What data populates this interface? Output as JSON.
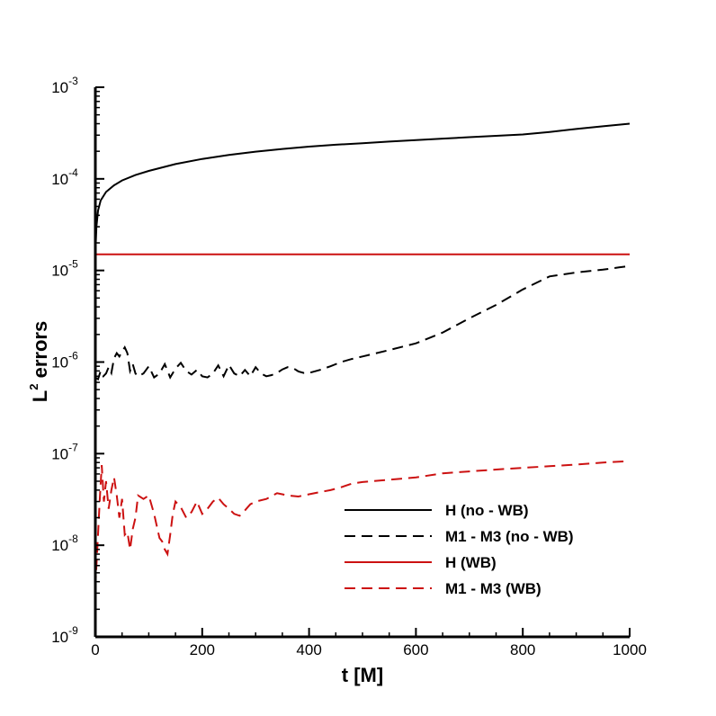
{
  "chart_data": {
    "type": "line",
    "title": "",
    "xlabel": "t [M]",
    "ylabel_main": "L",
    "ylabel_sup": "2",
    "ylabel_rest": " errors",
    "yscale": "log",
    "xlim": [
      0,
      1000
    ],
    "ylim": [
      1e-09,
      0.001
    ],
    "grid": false,
    "legend_position": "lower-right",
    "x_ticks": [
      0,
      200,
      400,
      600,
      800,
      1000
    ],
    "x_tick_labels": [
      "0",
      "200",
      "400",
      "600",
      "800",
      "1000"
    ],
    "y_ticks": [
      1e-09,
      1e-08,
      1e-07,
      1e-06,
      1e-05,
      0.0001,
      0.001
    ],
    "y_tick_bases": [
      "10",
      "10",
      "10",
      "10",
      "10",
      "10",
      "10"
    ],
    "y_tick_exps": [
      "-9",
      "-8",
      "-7",
      "-6",
      "-5",
      "-4",
      "-3"
    ],
    "series": [
      {
        "name": "H  (no - WB)",
        "color": "#000000",
        "dash": "solid",
        "x": [
          0,
          2,
          5,
          10,
          20,
          35,
          50,
          75,
          100,
          150,
          200,
          250,
          300,
          350,
          400,
          450,
          500,
          550,
          600,
          650,
          700,
          750,
          800,
          850,
          900,
          950,
          1000
        ],
        "y": [
          1.5e-05,
          3e-05,
          4.5e-05,
          5.8e-05,
          7.2e-05,
          8.5e-05,
          9.6e-05,
          0.00011,
          0.000122,
          0.000145,
          0.000165,
          0.000182,
          0.000198,
          0.000212,
          0.000225,
          0.000236,
          0.000245,
          0.000255,
          0.000265,
          0.000275,
          0.000285,
          0.000295,
          0.000305,
          0.000325,
          0.00035,
          0.000375,
          0.0004
        ]
      },
      {
        "name": "M1 - M3 (no - WB)",
        "color": "#000000",
        "dash": "dashed",
        "x": [
          0,
          5,
          10,
          15,
          20,
          25,
          30,
          35,
          40,
          45,
          50,
          55,
          60,
          65,
          70,
          75,
          80,
          90,
          100,
          110,
          120,
          130,
          140,
          150,
          160,
          170,
          180,
          190,
          200,
          210,
          220,
          230,
          240,
          250,
          260,
          270,
          280,
          290,
          300,
          310,
          320,
          330,
          340,
          350,
          360,
          370,
          380,
          390,
          400,
          420,
          440,
          460,
          480,
          500,
          550,
          600,
          650,
          700,
          750,
          800,
          850,
          900,
          950,
          980,
          1000
        ],
        "y": [
          6.8e-07,
          6.5e-07,
          8e-07,
          7e-07,
          7.5e-07,
          8.8e-07,
          7.6e-07,
          1.1e-06,
          1.25e-06,
          1.15e-06,
          1.3e-06,
          1.45e-06,
          1.25e-06,
          8e-07,
          9.5e-07,
          7.5e-07,
          7e-07,
          7.5e-07,
          9e-07,
          6.8e-07,
          7.5e-07,
          9.5e-07,
          6.8e-07,
          8.5e-07,
          9.8e-07,
          8e-07,
          7.3e-07,
          8.2e-07,
          7e-07,
          6.8e-07,
          7.5e-07,
          9.2e-07,
          7e-07,
          9.3e-07,
          7.5e-07,
          7e-07,
          8.2e-07,
          7e-07,
          8.8e-07,
          7.5e-07,
          7e-07,
          7.2e-07,
          7.6e-07,
          8.3e-07,
          8.8e-07,
          8.6e-07,
          7.9e-07,
          7.6e-07,
          7.6e-07,
          8.2e-07,
          9e-07,
          1e-06,
          1.08e-06,
          1.15e-06,
          1.35e-06,
          1.6e-06,
          2.1e-06,
          3e-06,
          4.2e-06,
          6.2e-06,
          8.6e-06,
          9.5e-06,
          1.02e-05,
          1.08e-05,
          1.12e-05
        ]
      },
      {
        "name": "H (WB)",
        "color": "#cc1111",
        "dash": "solid",
        "x": [
          0,
          1000
        ],
        "y": [
          1.5e-05,
          1.5e-05
        ]
      },
      {
        "name": "M1 - M3 (WB)",
        "color": "#cc1111",
        "dash": "dashed",
        "x": [
          0,
          4,
          8,
          12,
          16,
          20,
          25,
          30,
          35,
          40,
          45,
          50,
          55,
          60,
          65,
          70,
          75,
          80,
          90,
          100,
          110,
          120,
          125,
          130,
          135,
          140,
          145,
          150,
          160,
          170,
          180,
          190,
          200,
          210,
          220,
          230,
          240,
          250,
          260,
          270,
          280,
          290,
          300,
          320,
          340,
          360,
          380,
          400,
          420,
          440,
          460,
          480,
          500,
          550,
          600,
          650,
          700,
          750,
          800,
          850,
          900,
          950,
          1000
        ],
        "y": [
          3.5e-09,
          1e-08,
          3e-08,
          7.5e-08,
          3e-08,
          5e-08,
          2.5e-08,
          4e-08,
          5.5e-08,
          3.5e-08,
          2e-08,
          3.2e-08,
          1.3e-08,
          1.4e-08,
          9e-09,
          1.5e-08,
          2e-08,
          3.5e-08,
          3.2e-08,
          3.5e-08,
          2.2e-08,
          1.2e-08,
          1.1e-08,
          9e-09,
          8e-09,
          1.3e-08,
          2.2e-08,
          3e-08,
          2.6e-08,
          2e-08,
          2.3e-08,
          3e-08,
          2.2e-08,
          2.5e-08,
          3e-08,
          3.3e-08,
          2.8e-08,
          2.5e-08,
          2.2e-08,
          2.1e-08,
          2.4e-08,
          2.8e-08,
          3e-08,
          3.2e-08,
          3.7e-08,
          3.5e-08,
          3.4e-08,
          3.6e-08,
          3.8e-08,
          4e-08,
          4.3e-08,
          4.7e-08,
          4.9e-08,
          5.2e-08,
          5.5e-08,
          6.1e-08,
          6.4e-08,
          6.7e-08,
          7e-08,
          7.3e-08,
          7.6e-08,
          8e-08,
          8.3e-08
        ]
      }
    ]
  }
}
